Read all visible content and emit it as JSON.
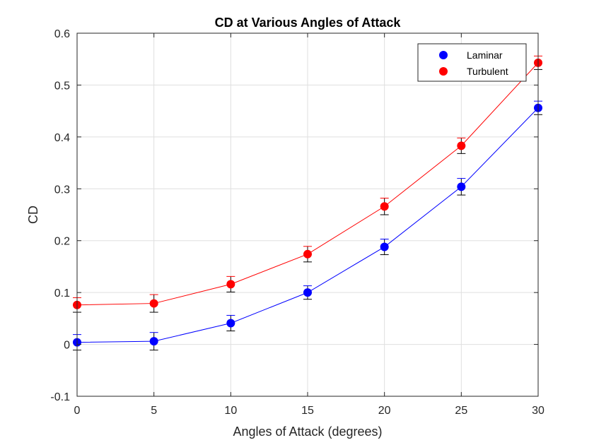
{
  "chart_data": {
    "type": "line",
    "title": "CD at Various Angles of Attack",
    "xlabel": "Angles of Attack (degrees)",
    "ylabel": "CD",
    "xlim": [
      0,
      30
    ],
    "ylim": [
      -0.1,
      0.6
    ],
    "xticks": [
      0,
      5,
      10,
      15,
      20,
      25,
      30
    ],
    "yticks": [
      -0.1,
      0,
      0.1,
      0.2,
      0.3,
      0.4,
      0.5,
      0.6
    ],
    "grid": true,
    "legend_position": "top-right",
    "x": [
      0,
      5,
      10,
      15,
      20,
      25,
      30
    ],
    "series": [
      {
        "name": "Laminar",
        "color": "#0000ff",
        "values": [
          0.004,
          0.006,
          0.041,
          0.1,
          0.188,
          0.304,
          0.456
        ],
        "error": [
          0.015,
          0.017,
          0.015,
          0.013,
          0.015,
          0.016,
          0.013
        ]
      },
      {
        "name": "Turbulent",
        "color": "#ff0000",
        "values": [
          0.076,
          0.079,
          0.116,
          0.174,
          0.266,
          0.383,
          0.543
        ],
        "error": [
          0.014,
          0.017,
          0.015,
          0.015,
          0.016,
          0.015,
          0.013
        ]
      }
    ]
  }
}
